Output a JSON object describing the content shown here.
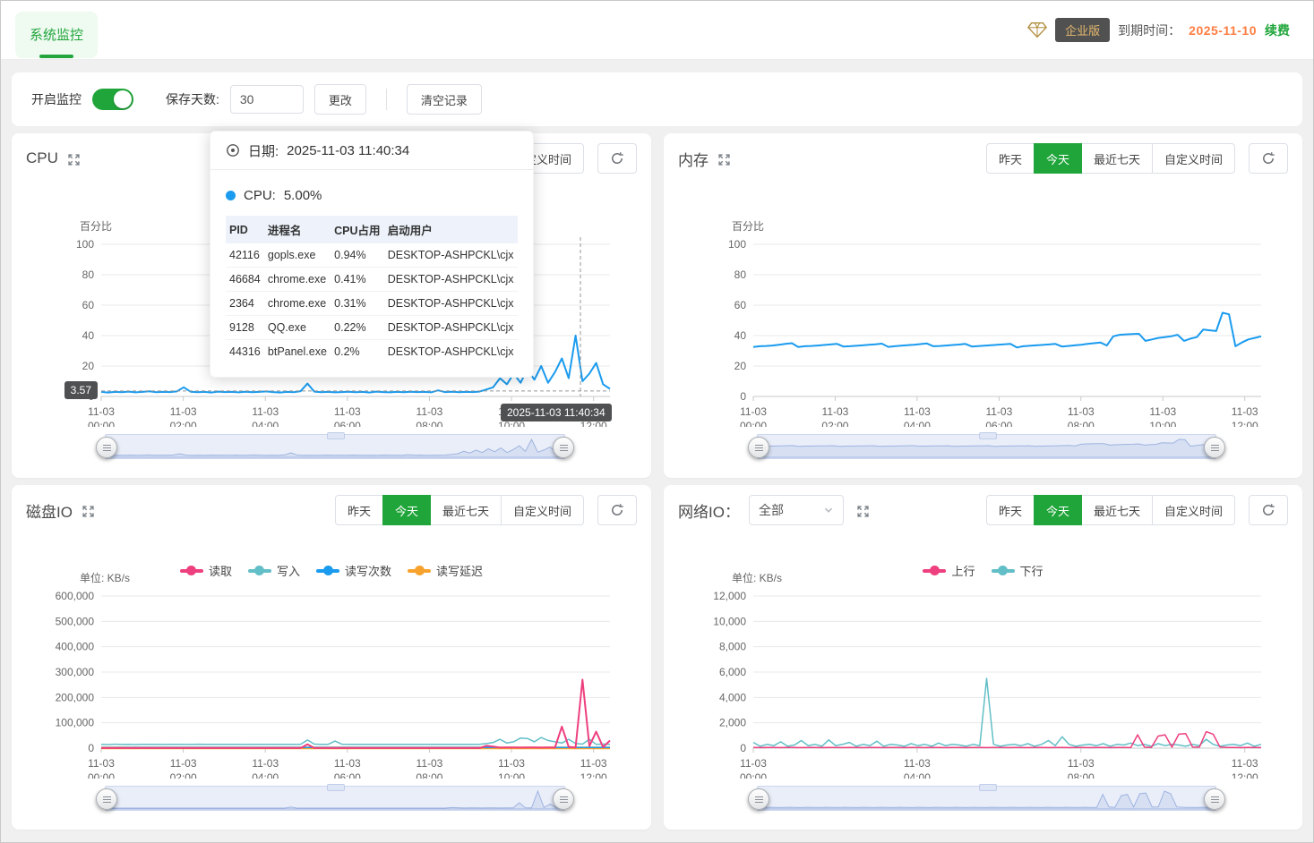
{
  "header": {
    "tab": "系统监控",
    "plan_badge": "企业版",
    "expire_label": "到期时间：",
    "expire_date": "2025-11-10",
    "renew": "续费"
  },
  "toolbar": {
    "toggle_label": "开启监控",
    "toggle_state": "on",
    "days_label": "保存天数:",
    "days_value": "30",
    "change": "更改",
    "clear": "清空记录"
  },
  "controls": {
    "tabs": [
      "昨天",
      "今天",
      "最近七天",
      "自定义时间"
    ],
    "active_index": 1
  },
  "network_select": {
    "value": "全部"
  },
  "tooltip": {
    "date_label": "日期:",
    "date": "2025-11-03 11:40:34",
    "series_label": "CPU:",
    "series_value": "5.00%",
    "columns": [
      "PID",
      "进程名",
      "CPU占用",
      "启动用户"
    ],
    "rows": [
      [
        "42116",
        "gopls.exe",
        "0.94%",
        "DESKTOP-ASHPCKL\\cjx"
      ],
      [
        "46684",
        "chrome.exe",
        "0.41%",
        "DESKTOP-ASHPCKL\\cjx"
      ],
      [
        "2364",
        "chrome.exe",
        "0.31%",
        "DESKTOP-ASHPCKL\\cjx"
      ],
      [
        "9128",
        "QQ.exe",
        "0.22%",
        "DESKTOP-ASHPCKL\\cjx"
      ],
      [
        "44316",
        "btPanel.exe",
        "0.2%",
        "DESKTOP-ASHPCKL\\cjx"
      ]
    ]
  },
  "colors": {
    "accent_green": "#20a53a",
    "blue": "#1a9bef",
    "pink": "#ee3f7f",
    "teal": "#62bec7",
    "orange": "#f7a22c",
    "date_orange": "#ff7d41",
    "badge_bg": "#4f5052"
  },
  "chart_data": [
    {
      "id": "cpu",
      "type": "line",
      "title": "CPU",
      "unit": "百分比",
      "ymax": 100,
      "yticks": [
        "0",
        "20",
        "40",
        "60",
        "80",
        "100"
      ],
      "hmax": 12.4,
      "xticks": [
        {
          "h": 0,
          "d": "11-03",
          "t": "00:00"
        },
        {
          "h": 2,
          "d": "11-03",
          "t": "02:00"
        },
        {
          "h": 4,
          "d": "11-03",
          "t": "04:00"
        },
        {
          "h": 6,
          "d": "11-03",
          "t": "06:00"
        },
        {
          "h": 8,
          "d": "11-03",
          "t": "08:00"
        },
        {
          "h": 10,
          "d": "11-03",
          "t": "10:00"
        },
        {
          "h": 12,
          "d": "11-03",
          "t": "12:00"
        }
      ],
      "series": [
        {
          "name": "CPU",
          "color": "#1a9bef",
          "width": 2,
          "values": [
            3,
            2.6,
            3,
            2.8,
            3.2,
            2.7,
            3,
            3.4,
            2.8,
            3,
            2.9,
            3.3,
            6,
            3.1,
            2.8,
            3,
            2.6,
            3.2,
            2.9,
            3,
            2.7,
            3.1,
            2.8,
            3,
            3.3,
            2.9,
            2.6,
            3,
            2.8,
            3.5,
            8.5,
            3.2,
            2.8,
            3,
            2.7,
            2.9,
            3.1,
            2.8,
            3,
            2.6,
            3.2,
            2.9,
            2.7,
            3,
            2.8,
            3.1,
            2.9,
            3,
            2.7,
            4,
            2.9,
            3.1,
            2.8,
            3,
            2.9,
            3.2,
            4.5,
            6,
            12,
            8,
            15,
            9,
            18,
            11,
            20,
            9,
            16,
            25,
            12,
            40,
            10,
            15,
            22,
            8,
            5
          ]
        }
      ],
      "pointer": {
        "y_label": "3.57",
        "y_value": 3.57,
        "x_hour": 11.68,
        "x_label": "2025-11-03 11:40:34"
      }
    },
    {
      "id": "memory",
      "type": "line",
      "title": "内存",
      "unit": "百分比",
      "ymax": 100,
      "yticks": [
        "0",
        "20",
        "40",
        "60",
        "80",
        "100"
      ],
      "hmax": 12.4,
      "xticks": [
        {
          "h": 0,
          "d": "11-03",
          "t": "00:00"
        },
        {
          "h": 2,
          "d": "11-03",
          "t": "02:00"
        },
        {
          "h": 4,
          "d": "11-03",
          "t": "04:00"
        },
        {
          "h": 6,
          "d": "11-03",
          "t": "06:00"
        },
        {
          "h": 8,
          "d": "11-03",
          "t": "08:00"
        },
        {
          "h": 10,
          "d": "11-03",
          "t": "10:00"
        },
        {
          "h": 12,
          "d": "11-03",
          "t": "12:00"
        }
      ],
      "series": [
        {
          "name": "内存",
          "color": "#1a9bef",
          "width": 2,
          "values": [
            32.5,
            33,
            33.2,
            33.5,
            34,
            34.5,
            35,
            32.5,
            33,
            33.2,
            33.5,
            33.8,
            34.2,
            34.6,
            32.8,
            33,
            33.3,
            33.6,
            34,
            34.3,
            34.7,
            32.6,
            33,
            33.4,
            33.7,
            34,
            34.4,
            34.8,
            33,
            33.2,
            33.5,
            33.8,
            34.1,
            34.5,
            32.8,
            33.1,
            33.4,
            33.7,
            34,
            34.3,
            34.6,
            32.2,
            33,
            33.3,
            33.6,
            33.9,
            34.2,
            34.5,
            32.8,
            33.2,
            33.6,
            34,
            34.5,
            35,
            35.5,
            33.5,
            39.5,
            40.5,
            40.8,
            41,
            41.2,
            36.5,
            37.5,
            38.5,
            39,
            39.5,
            40.5,
            36.5,
            38,
            39,
            44,
            43.5,
            43,
            55,
            54,
            33,
            35.5,
            37.5,
            38.5,
            39.5
          ]
        }
      ]
    },
    {
      "id": "disk",
      "type": "line",
      "title": "磁盘IO",
      "unit": "单位: KB/s",
      "ymax": 600000,
      "yticks": [
        "0",
        "100,000",
        "200,000",
        "300,000",
        "400,000",
        "500,000",
        "600,000"
      ],
      "hmax": 12.4,
      "xticks": [
        {
          "h": 0,
          "d": "11-03",
          "t": "00:00"
        },
        {
          "h": 2,
          "d": "11-03",
          "t": "02:00"
        },
        {
          "h": 4,
          "d": "11-03",
          "t": "04:00"
        },
        {
          "h": 6,
          "d": "11-03",
          "t": "06:00"
        },
        {
          "h": 8,
          "d": "11-03",
          "t": "08:00"
        },
        {
          "h": 10,
          "d": "11-03",
          "t": "10:00"
        },
        {
          "h": 12,
          "d": "11-03",
          "t": "12:00"
        }
      ],
      "legend": [
        {
          "name": "读取",
          "color": "#ee3f7f"
        },
        {
          "name": "写入",
          "color": "#62bec7"
        },
        {
          "name": "读写次数",
          "color": "#1a9bef"
        },
        {
          "name": "读写延迟",
          "color": "#f7a22c"
        }
      ],
      "series": [
        {
          "name": "读取",
          "color": "#ee3f7f",
          "width": 2,
          "values": [
            500,
            400,
            500,
            450,
            500,
            400,
            500,
            450,
            500,
            400,
            500,
            450,
            400,
            500,
            450,
            500,
            400,
            500,
            450,
            500,
            400,
            500,
            450,
            500,
            400,
            500,
            450,
            500,
            400,
            500,
            15000,
            500,
            450,
            500,
            400,
            500,
            450,
            500,
            400,
            500,
            450,
            500,
            400,
            500,
            450,
            500,
            400,
            500,
            450,
            500,
            400,
            500,
            450,
            500,
            400,
            500,
            9000,
            6000,
            2000,
            3000,
            2500,
            2000,
            3000,
            2500,
            2000,
            3000,
            2500,
            85000,
            5000,
            3000,
            270000,
            8000,
            65000,
            4000,
            30000
          ]
        },
        {
          "name": "写入",
          "color": "#62bec7",
          "width": 1.5,
          "values": [
            15000,
            14000,
            15500,
            14500,
            15000,
            14200,
            15300,
            14800,
            15000,
            14500,
            15200,
            14800,
            15000,
            14600,
            15400,
            14900,
            15100,
            14700,
            15000,
            14800,
            15300,
            14600,
            15000,
            14900,
            15200,
            14700,
            15000,
            14800,
            15100,
            14900,
            32000,
            16000,
            15000,
            14800,
            28000,
            15500,
            15000,
            14800,
            15200,
            14900,
            15000,
            14700,
            15300,
            14800,
            15000,
            14900,
            15100,
            14800,
            15000,
            14700,
            15200,
            14800,
            15000,
            14900,
            15100,
            14800,
            18000,
            22000,
            35000,
            20000,
            25000,
            40000,
            38000,
            25000,
            42000,
            30000,
            25000,
            20000,
            35000,
            18000,
            16000,
            35000,
            15000,
            16000,
            15000
          ]
        },
        {
          "name": "读写次数",
          "color": "#1a9bef",
          "width": 1.5,
          "values": [
            2200,
            2600,
            2300,
            2500,
            2400,
            2600,
            2300,
            2500,
            2400,
            2700,
            2300,
            2500,
            2400,
            2600,
            2300,
            2500,
            2600,
            2400,
            2500,
            2300
          ]
        },
        {
          "name": "读写延迟",
          "color": "#f7a22c",
          "width": 3,
          "values": [
            900,
            900,
            900,
            900,
            900,
            900,
            900,
            900,
            900,
            900
          ]
        }
      ]
    },
    {
      "id": "network",
      "type": "line",
      "title": "网络IO：",
      "unit": "单位: KB/s",
      "ymax": 12000,
      "yticks": [
        "0",
        "2,000",
        "4,000",
        "6,000",
        "8,000",
        "10,000",
        "12,000"
      ],
      "hmax": 12.4,
      "xticks": [
        {
          "h": 0,
          "d": "11-03",
          "t": "00:00"
        },
        {
          "h": 4,
          "d": "11-03",
          "t": "04:00"
        },
        {
          "h": 8,
          "d": "11-03",
          "t": "08:00"
        },
        {
          "h": 12,
          "d": "11-03",
          "t": "12:00"
        }
      ],
      "legend": [
        {
          "name": "上行",
          "color": "#ee3f7f"
        },
        {
          "name": "下行",
          "color": "#62bec7"
        }
      ],
      "series": [
        {
          "name": "上行",
          "color": "#ee3f7f",
          "width": 1.5,
          "values": [
            50,
            40,
            60,
            50,
            40,
            60,
            50,
            40,
            60,
            50,
            40,
            60,
            50,
            40,
            60,
            50,
            40,
            60,
            50,
            40,
            60,
            50,
            40,
            60,
            50,
            40,
            60,
            50,
            40,
            60,
            50,
            40,
            60,
            50,
            40,
            60,
            50,
            40,
            60,
            50,
            40,
            60,
            50,
            40,
            60,
            50,
            40,
            60,
            50,
            40,
            60,
            50,
            40,
            60,
            50,
            40,
            1050,
            80,
            60,
            950,
            1050,
            80,
            1100,
            1150,
            90,
            80,
            1300,
            1100,
            90,
            60,
            50,
            40,
            60,
            50,
            40
          ]
        },
        {
          "name": "下行",
          "color": "#62bec7",
          "width": 1.5,
          "values": [
            450,
            150,
            300,
            200,
            500,
            150,
            250,
            600,
            200,
            300,
            150,
            650,
            200,
            300,
            450,
            150,
            300,
            200,
            550,
            150,
            300,
            250,
            150,
            350,
            200,
            300,
            150,
            400,
            200,
            300,
            250,
            150,
            300,
            200,
            5500,
            300,
            150,
            250,
            300,
            200,
            350,
            150,
            300,
            600,
            200,
            900,
            300,
            150,
            250,
            300,
            200,
            350,
            150,
            300,
            250,
            400,
            200,
            300,
            150,
            350,
            200,
            300,
            250,
            150,
            300,
            200,
            700,
            300,
            150,
            250,
            300,
            200,
            400,
            150,
            300
          ]
        }
      ]
    }
  ]
}
